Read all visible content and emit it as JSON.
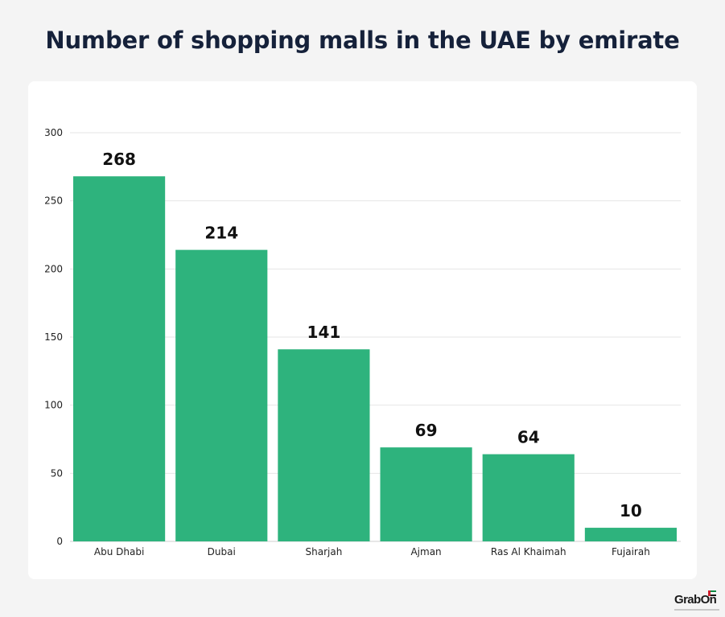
{
  "title": "Number of shopping malls in the UAE by emirate",
  "logo": {
    "text": "GrabOn"
  },
  "colors": {
    "bar": "#2eb37d",
    "title": "#15213a",
    "grid": "#e6e6e6",
    "background": "#f4f4f4",
    "card": "#ffffff"
  },
  "chart_data": {
    "type": "bar",
    "title": "Number of shopping malls in the UAE by emirate",
    "xlabel": "",
    "ylabel": "",
    "categories": [
      "Abu Dhabi",
      "Dubai",
      "Sharjah",
      "Ajman",
      "Ras Al Khaimah",
      "Fujairah"
    ],
    "values": [
      268,
      214,
      141,
      69,
      64,
      10
    ],
    "ylim": [
      0,
      300
    ],
    "yticks": [
      0,
      50,
      100,
      150,
      200,
      250,
      300
    ],
    "grid": true,
    "legend": "none",
    "data_labels": true
  }
}
